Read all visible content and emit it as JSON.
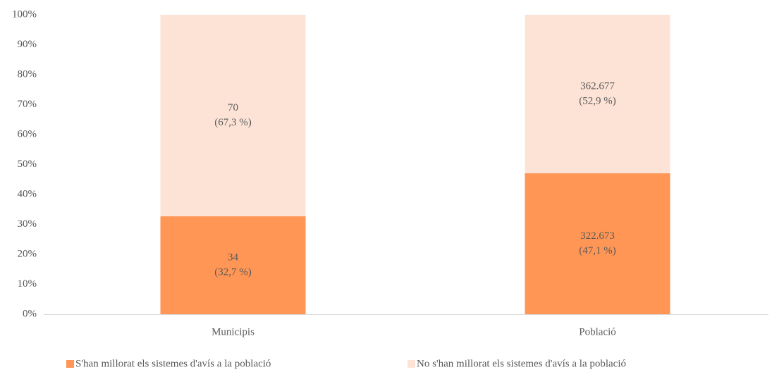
{
  "chart_data": {
    "type": "stacked-bar",
    "categories": [
      "Municipis",
      "Població"
    ],
    "series": [
      {
        "name": "S'han millorat els sistemes d'avís a la població",
        "color": "#ff9655",
        "values": [
          32.7,
          47.1
        ],
        "value_labels": [
          [
            "34",
            "(32,7 %)"
          ],
          [
            "322.673",
            "(47,1 %)"
          ]
        ]
      },
      {
        "name": "No s'han millorat els sistemes d'avís a la població",
        "color": "#fde3d6",
        "values": [
          67.3,
          52.9
        ],
        "value_labels": [
          [
            "70",
            "(67,3 %)"
          ],
          [
            "362.677",
            "(52,9 %)"
          ]
        ]
      }
    ],
    "ylim": [
      0,
      100
    ],
    "yticks": [
      {
        "value": 0,
        "label": "0%"
      },
      {
        "value": 10,
        "label": "10%"
      },
      {
        "value": 20,
        "label": "20%"
      },
      {
        "value": 30,
        "label": "30%"
      },
      {
        "value": 40,
        "label": "40%"
      },
      {
        "value": 50,
        "label": "50%"
      },
      {
        "value": 60,
        "label": "60%"
      },
      {
        "value": 70,
        "label": "70%"
      },
      {
        "value": 80,
        "label": "80%"
      },
      {
        "value": 90,
        "label": "90%"
      },
      {
        "value": 100,
        "label": "100%"
      }
    ],
    "grid": false,
    "legend": "bottom"
  }
}
